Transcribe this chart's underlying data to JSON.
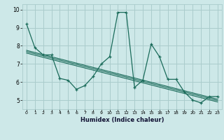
{
  "title": "",
  "xlabel": "Humidex (Indice chaleur)",
  "bg_color": "#cde8e8",
  "grid_color": "#aacccc",
  "line_color": "#1a6b5a",
  "xlim": [
    -0.5,
    23.5
  ],
  "ylim": [
    4.5,
    10.3
  ],
  "xticks": [
    0,
    1,
    2,
    3,
    4,
    5,
    6,
    7,
    8,
    9,
    10,
    11,
    12,
    13,
    14,
    15,
    16,
    17,
    18,
    19,
    20,
    21,
    22,
    23
  ],
  "yticks": [
    5,
    6,
    7,
    8,
    9,
    10
  ],
  "main_series": [
    [
      0,
      9.2
    ],
    [
      1,
      7.9
    ],
    [
      2,
      7.5
    ],
    [
      3,
      7.5
    ],
    [
      4,
      6.2
    ],
    [
      5,
      6.1
    ],
    [
      6,
      5.6
    ],
    [
      7,
      5.8
    ],
    [
      8,
      6.3
    ],
    [
      9,
      7.0
    ],
    [
      10,
      7.4
    ],
    [
      11,
      9.85
    ],
    [
      12,
      9.85
    ],
    [
      13,
      5.7
    ],
    [
      14,
      6.1
    ],
    [
      15,
      8.1
    ],
    [
      16,
      7.4
    ],
    [
      17,
      6.15
    ],
    [
      18,
      6.15
    ],
    [
      19,
      5.45
    ],
    [
      20,
      5.0
    ],
    [
      21,
      4.85
    ],
    [
      22,
      5.2
    ],
    [
      23,
      5.2
    ]
  ],
  "trend_lines": [
    [
      [
        0,
        7.75
      ],
      [
        23,
        5.05
      ]
    ],
    [
      [
        0,
        7.68
      ],
      [
        23,
        4.98
      ]
    ],
    [
      [
        0,
        7.6
      ],
      [
        23,
        4.9
      ]
    ]
  ]
}
